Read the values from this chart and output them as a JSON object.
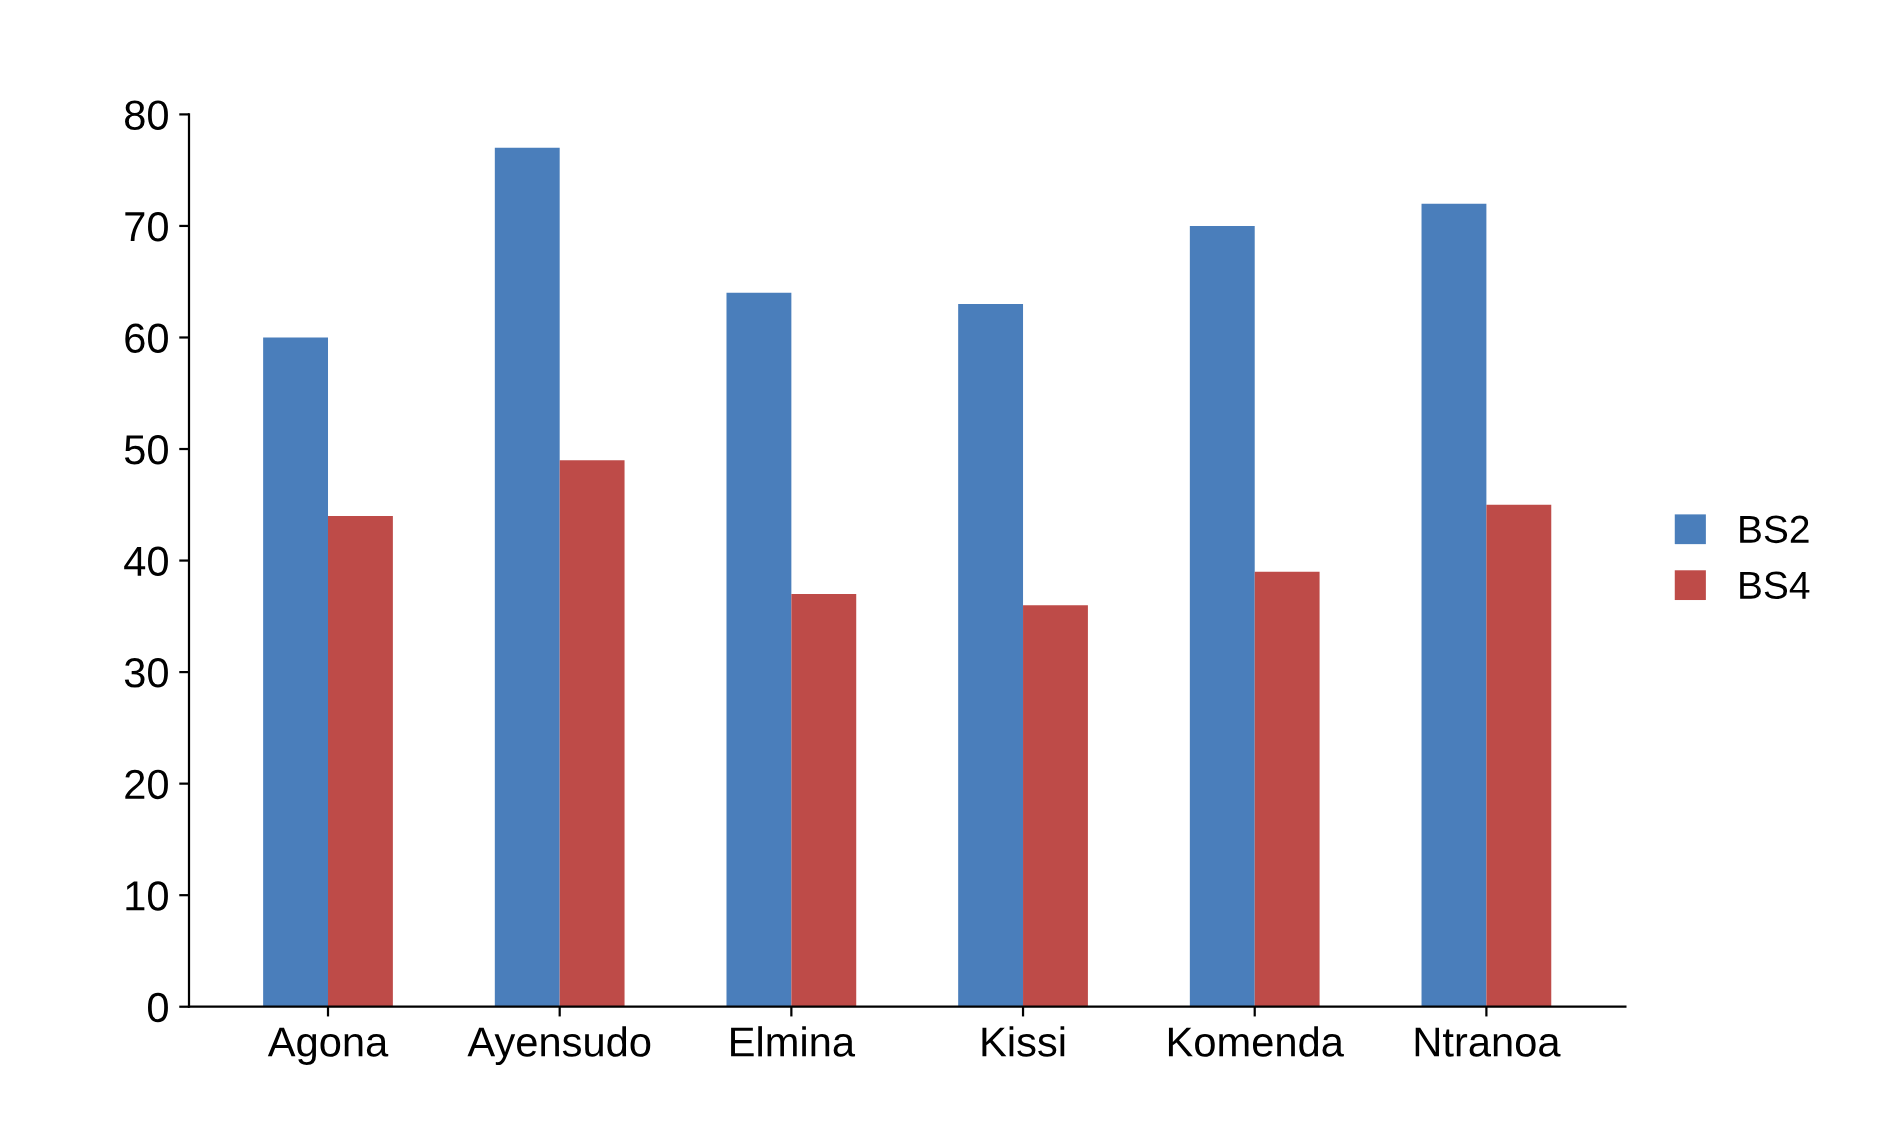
{
  "chart_data": {
    "type": "bar",
    "categories": [
      "Agona",
      "Ayensudo",
      "Elmina",
      "Kissi",
      "Komenda",
      "Ntranoa"
    ],
    "series": [
      {
        "name": "BS2",
        "color": "#4a7ebb",
        "values": [
          60,
          77,
          64,
          63,
          70,
          72
        ]
      },
      {
        "name": "BS4",
        "color": "#be4b48",
        "values": [
          44,
          49,
          37,
          36,
          39,
          45
        ]
      }
    ],
    "ylim": [
      0,
      80
    ],
    "yticks": [
      0,
      10,
      20,
      30,
      40,
      50,
      60,
      70,
      80
    ],
    "grid": false,
    "legend": "right"
  }
}
